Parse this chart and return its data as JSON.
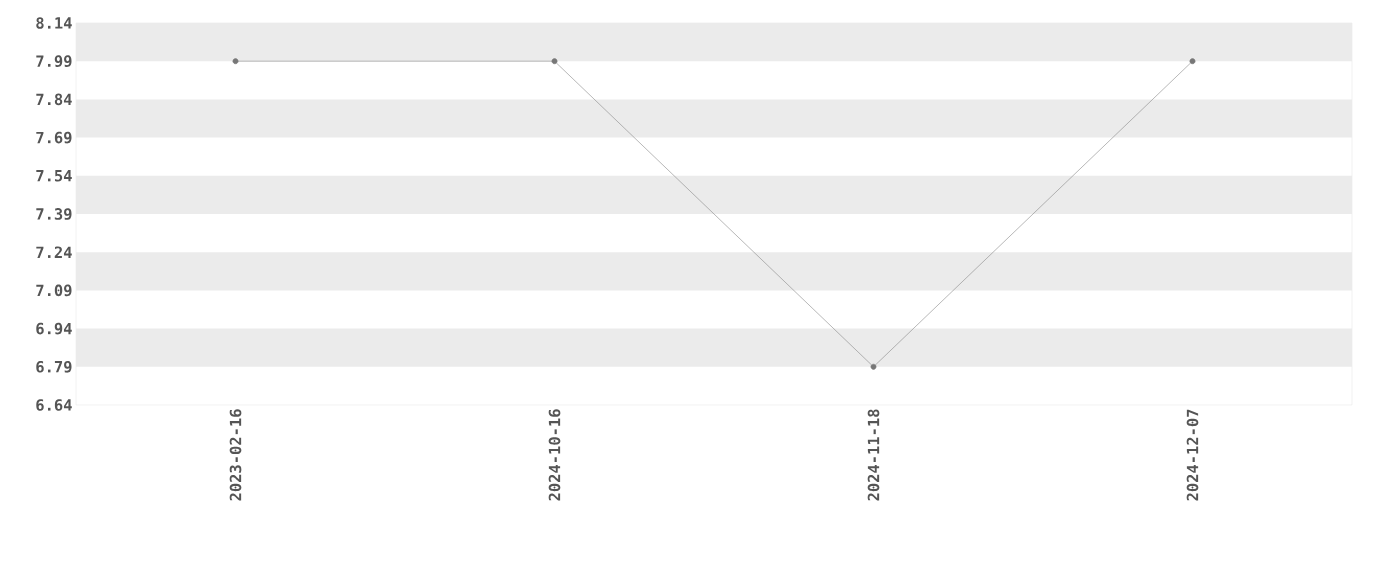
{
  "chart_data": {
    "type": "line",
    "categories": [
      "2023-02-16",
      "2024-10-16",
      "2024-11-18",
      "2024-12-07"
    ],
    "series": [
      {
        "color": "#888888",
        "values": [
          7.99,
          7.99,
          6.79,
          7.99
        ]
      }
    ],
    "ylim": [
      6.64,
      8.14
    ],
    "yticks": [
      6.64,
      6.79,
      6.94,
      7.09,
      7.24,
      7.39,
      7.54,
      7.69,
      7.84,
      7.99,
      8.14
    ],
    "bands": [
      {
        "axis": "y",
        "from": 7.99,
        "to": 8.14,
        "color": "#ebebeb"
      },
      {
        "axis": "y",
        "from": 7.69,
        "to": 7.84,
        "color": "#ebebeb"
      },
      {
        "axis": "y",
        "from": 7.39,
        "to": 7.54,
        "color": "#ebebeb"
      },
      {
        "axis": "y",
        "from": 7.09,
        "to": 7.24,
        "color": "#ebebeb"
      },
      {
        "axis": "y",
        "from": 6.79,
        "to": 6.94,
        "color": "#ebebeb"
      }
    ],
    "marker": "circle",
    "line_style": "solid",
    "grid": false
  }
}
